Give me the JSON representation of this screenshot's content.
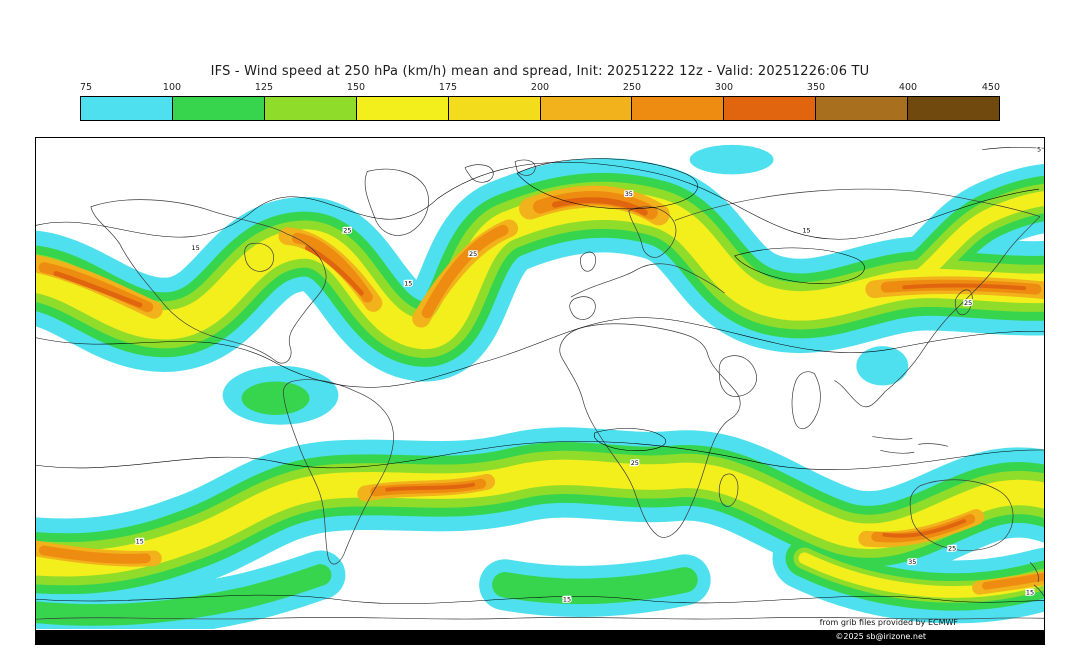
{
  "title": "IFS - Wind speed at 250 hPa (km/h) mean and spread, Init: 20251222 12z - Valid: 20251226:06 TU",
  "chart_data": {
    "type": "heatmap",
    "title": "IFS - Wind speed at 250 hPa (km/h) mean and spread, Init: 20251222 12z - Valid: 20251226:06 TU",
    "variable": "Wind speed at 250 hPa",
    "units": "km/h",
    "statistic": "mean and spread",
    "model": "IFS",
    "init": "20251222 12z",
    "valid": "20251226:06 TU",
    "projection": "global equirectangular map",
    "legend_position": "top",
    "colorbar": {
      "ticks": [
        75,
        100,
        125,
        150,
        175,
        200,
        250,
        300,
        350,
        400,
        450
      ],
      "colors": [
        "#4ee0ef",
        "#37d44e",
        "#8fdc2b",
        "#f3ef1d",
        "#f2dc1b",
        "#f2b21b",
        "#ee8c12",
        "#e0650e",
        "#a8701e",
        "#6f490e"
      ]
    },
    "spread_contour_labels": [
      "5",
      "15",
      "25",
      "35"
    ]
  },
  "attribution": {
    "source_note": "from grib files provided by ECMWF",
    "copyright": "©2025 sb@irizone.net"
  }
}
